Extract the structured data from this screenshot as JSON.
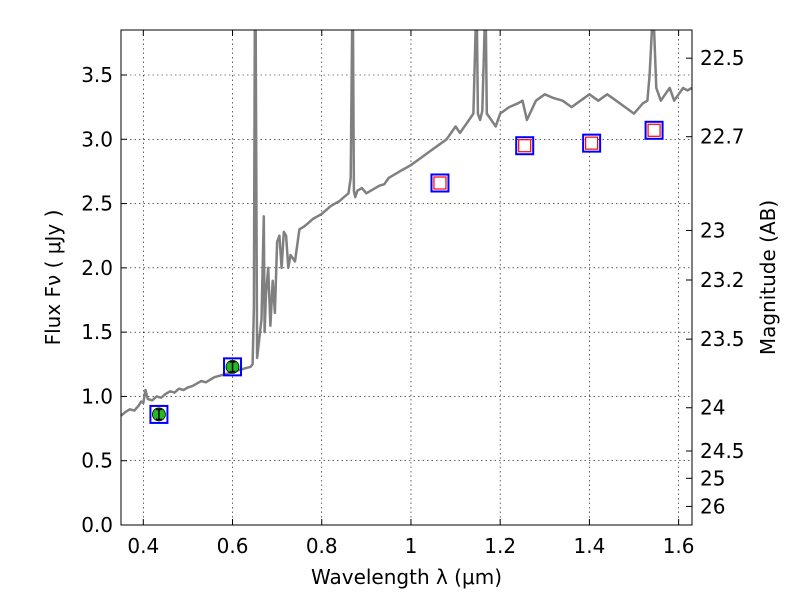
{
  "chart_data": {
    "type": "line",
    "xlabel": "Wavelength  λ (μm)",
    "ylabel": "Flux  Fν  ( μJy )",
    "y2label": "Magnitude (AB)",
    "xlim": [
      0.35,
      1.63
    ],
    "ylim": [
      0.0,
      3.85
    ],
    "grid": true,
    "x_ticks": [
      {
        "value": 0.4,
        "label": "0.4"
      },
      {
        "value": 0.6,
        "label": "0.6"
      },
      {
        "value": 0.8,
        "label": "0.8"
      },
      {
        "value": 1.0,
        "label": "1"
      },
      {
        "value": 1.2,
        "label": "1.2"
      },
      {
        "value": 1.4,
        "label": "1.4"
      },
      {
        "value": 1.6,
        "label": "1.6"
      }
    ],
    "y_ticks": [
      {
        "value": 0.0,
        "label": "0.0"
      },
      {
        "value": 0.5,
        "label": "0.5"
      },
      {
        "value": 1.0,
        "label": "1.0"
      },
      {
        "value": 1.5,
        "label": "1.5"
      },
      {
        "value": 2.0,
        "label": "2.0"
      },
      {
        "value": 2.5,
        "label": "2.5"
      },
      {
        "value": 3.0,
        "label": "3.0"
      },
      {
        "value": 3.5,
        "label": "3.5"
      }
    ],
    "y2_ticks": [
      {
        "value": 22.5,
        "label": "22.5"
      },
      {
        "value": 22.7,
        "label": "22.7"
      },
      {
        "value": 23.0,
        "label": "23"
      },
      {
        "value": 23.2,
        "label": "23.2"
      },
      {
        "value": 23.5,
        "label": "23.5"
      },
      {
        "value": 24.0,
        "label": "24"
      },
      {
        "value": 24.5,
        "label": "24.5"
      },
      {
        "value": 25.0,
        "label": "25"
      },
      {
        "value": 26.0,
        "label": "26"
      }
    ],
    "series": [
      {
        "color": "#808080",
        "x": [
          0.35,
          0.36,
          0.37,
          0.38,
          0.39,
          0.395,
          0.4,
          0.405,
          0.41,
          0.42,
          0.43,
          0.44,
          0.45,
          0.46,
          0.47,
          0.48,
          0.49,
          0.5,
          0.51,
          0.52,
          0.53,
          0.54,
          0.55,
          0.56,
          0.57,
          0.58,
          0.59,
          0.6,
          0.61,
          0.62,
          0.63,
          0.64,
          0.645,
          0.648,
          0.65,
          0.652,
          0.655,
          0.66,
          0.665,
          0.67,
          0.672,
          0.675,
          0.68,
          0.685,
          0.69,
          0.695,
          0.7,
          0.705,
          0.71,
          0.715,
          0.72,
          0.725,
          0.73,
          0.74,
          0.75,
          0.76,
          0.77,
          0.78,
          0.79,
          0.8,
          0.81,
          0.82,
          0.83,
          0.84,
          0.85,
          0.86,
          0.865,
          0.868,
          0.87,
          0.872,
          0.875,
          0.88,
          0.89,
          0.9,
          0.91,
          0.92,
          0.93,
          0.94,
          0.95,
          0.96,
          0.97,
          0.98,
          0.99,
          1.0,
          1.02,
          1.04,
          1.06,
          1.08,
          1.09,
          1.1,
          1.11,
          1.12,
          1.13,
          1.14,
          1.145,
          1.148,
          1.15,
          1.155,
          1.16,
          1.165,
          1.168,
          1.17,
          1.18,
          1.19,
          1.2,
          1.22,
          1.24,
          1.25,
          1.26,
          1.28,
          1.3,
          1.32,
          1.34,
          1.36,
          1.38,
          1.4,
          1.42,
          1.44,
          1.46,
          1.48,
          1.5,
          1.52,
          1.53,
          1.535,
          1.54,
          1.545,
          1.55,
          1.56,
          1.57,
          1.58,
          1.59,
          1.6,
          1.61,
          1.62,
          1.63
        ],
        "y": [
          0.85,
          0.88,
          0.9,
          0.89,
          0.93,
          0.96,
          0.95,
          1.05,
          0.98,
          0.97,
          1.0,
          0.99,
          1.02,
          1.04,
          1.03,
          1.06,
          1.05,
          1.07,
          1.08,
          1.1,
          1.12,
          1.11,
          1.13,
          1.15,
          1.16,
          1.17,
          1.18,
          1.19,
          1.2,
          1.21,
          1.22,
          1.23,
          1.25,
          1.7,
          3.85,
          3.85,
          1.3,
          1.45,
          1.6,
          2.4,
          1.5,
          1.8,
          2.0,
          1.55,
          1.9,
          1.65,
          2.2,
          2.25,
          2.0,
          2.28,
          2.25,
          2.0,
          2.1,
          2.05,
          2.3,
          2.32,
          2.35,
          2.38,
          2.4,
          2.42,
          2.45,
          2.48,
          2.5,
          2.52,
          2.55,
          2.58,
          2.7,
          3.85,
          3.85,
          2.6,
          2.55,
          2.6,
          2.62,
          2.58,
          2.6,
          2.62,
          2.64,
          2.65,
          2.7,
          2.72,
          2.74,
          2.76,
          2.78,
          2.8,
          2.85,
          2.9,
          2.95,
          3.0,
          3.05,
          3.1,
          3.05,
          3.1,
          3.15,
          3.2,
          3.85,
          3.85,
          3.2,
          3.15,
          3.22,
          3.85,
          3.85,
          3.2,
          3.15,
          3.1,
          3.2,
          3.25,
          3.28,
          3.3,
          3.15,
          3.3,
          3.35,
          3.32,
          3.3,
          3.25,
          3.3,
          3.35,
          3.3,
          3.35,
          3.3,
          3.25,
          3.2,
          3.28,
          3.3,
          3.5,
          3.85,
          3.85,
          3.4,
          3.3,
          3.35,
          3.4,
          3.3,
          3.35,
          3.4,
          3.38,
          3.4
        ]
      }
    ],
    "photometry_filled": [
      {
        "x": 0.435,
        "y": 0.86
      },
      {
        "x": 0.6,
        "y": 1.23
      }
    ],
    "photometry_open": [
      {
        "x": 1.065,
        "y": 2.66
      },
      {
        "x": 1.255,
        "y": 2.95
      },
      {
        "x": 1.405,
        "y": 2.97
      },
      {
        "x": 1.545,
        "y": 3.07
      }
    ],
    "model_boxes": [
      {
        "x": 0.435,
        "y": 0.86
      },
      {
        "x": 0.6,
        "y": 1.23
      },
      {
        "x": 1.065,
        "y": 2.66
      },
      {
        "x": 1.255,
        "y": 2.95
      },
      {
        "x": 1.405,
        "y": 2.97
      },
      {
        "x": 1.545,
        "y": 3.07
      }
    ],
    "colors": {
      "spectrum": "#808080",
      "model_box": "#0000ff",
      "photometry_filled": "#22bb22",
      "photometry_open": "#ff0000"
    }
  }
}
